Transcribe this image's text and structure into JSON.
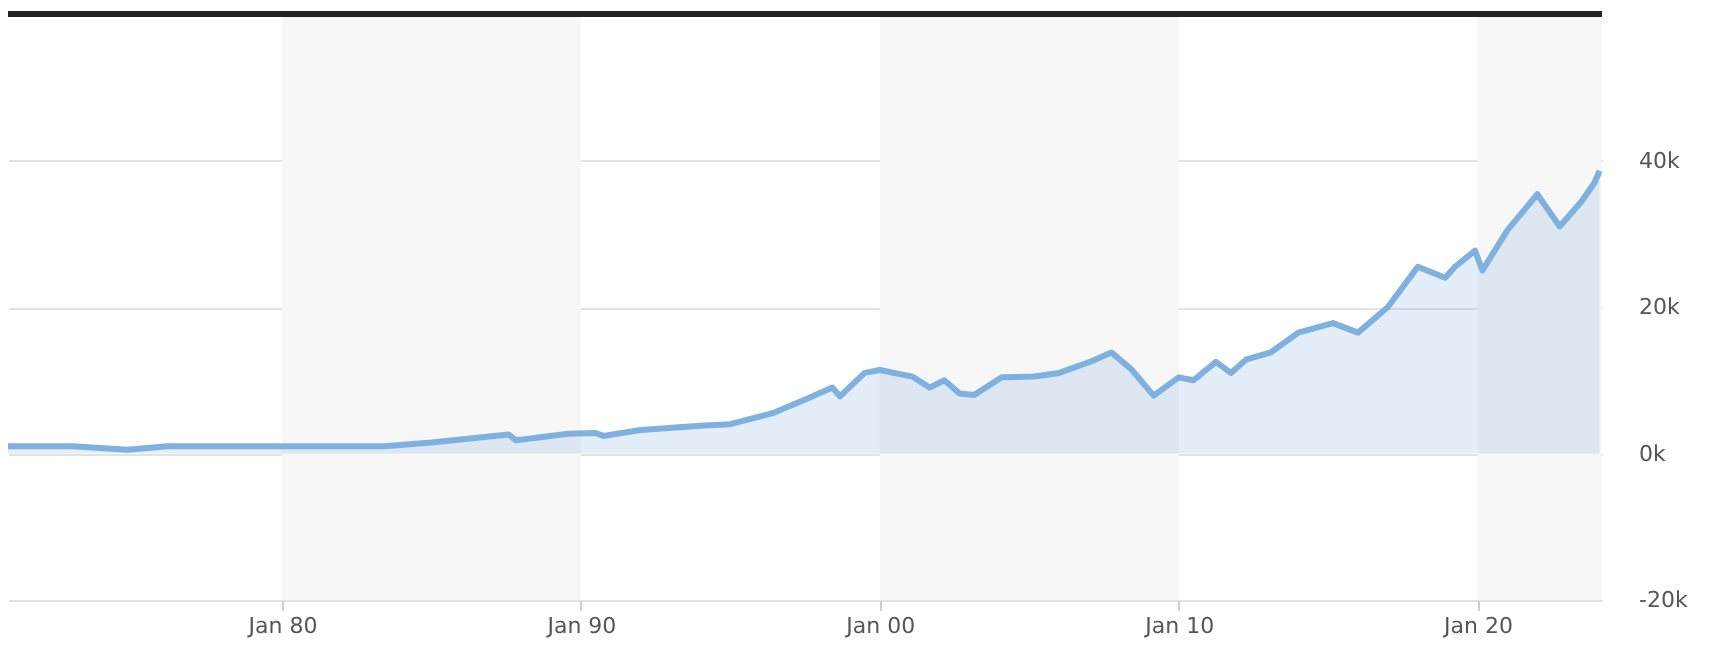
{
  "chart_data": {
    "type": "area",
    "series": [
      {
        "color": "#7eb0e0",
        "x": [
          "1970-11",
          "1971-06",
          "1973-01",
          "1974-11",
          "1976-03",
          "1978-03",
          "1980-01",
          "1981-04",
          "1982-08",
          "1983-06",
          "1985-01",
          "1987-08",
          "1987-11",
          "1989-08",
          "1990-07",
          "1990-10",
          "1992-01",
          "1994-01",
          "1995-01",
          "1996-06",
          "1997-08",
          "1998-06",
          "1998-09",
          "1999-07",
          "2000-01",
          "2001-02",
          "2001-09",
          "2002-03",
          "2002-09",
          "2003-03",
          "2004-02",
          "2005-03",
          "2006-01",
          "2007-02",
          "2007-10",
          "2008-06",
          "2009-03",
          "2010-01",
          "2010-07",
          "2011-04",
          "2011-10",
          "2012-04",
          "2013-02",
          "2014-01",
          "2015-03",
          "2016-01",
          "2017-01",
          "2018-01",
          "2018-12",
          "2019-04",
          "2019-12",
          "2020-03",
          "2021-01",
          "2022-01",
          "2022-10",
          "2023-07",
          "2023-12",
          "2024-02"
        ],
        "values": [
          1000,
          1000,
          1000,
          500,
          1000,
          1000,
          1000,
          1000,
          1000,
          1000,
          1500,
          2600,
          1800,
          2700,
          2800,
          2400,
          3200,
          3800,
          4000,
          5500,
          7500,
          9000,
          7800,
          11000,
          11400,
          10500,
          9000,
          10000,
          8200,
          8000,
          10400,
          10500,
          11000,
          12600,
          13800,
          11500,
          7900,
          10400,
          10000,
          12500,
          11000,
          12800,
          13800,
          16500,
          17800,
          16500,
          20000,
          25500,
          24000,
          25500,
          27700,
          25000,
          30500,
          35400,
          31000,
          34500,
          37000,
          38600
        ]
      }
    ],
    "xlim": [
      "1970-11",
      "2024-03"
    ],
    "xticks": [
      {
        "value": "1980-01",
        "label": "Jan 80"
      },
      {
        "value": "1990-01",
        "label": "Jan 90"
      },
      {
        "value": "2000-01",
        "label": "Jan 00"
      },
      {
        "value": "2010-01",
        "label": "Jan 10"
      },
      {
        "value": "2020-01",
        "label": "Jan 20"
      }
    ],
    "ylim": [
      -20000,
      60000
    ],
    "yticks": [
      {
        "value": -20000,
        "label": "-20k"
      },
      {
        "value": 0,
        "label": "0k"
      },
      {
        "value": 20000,
        "label": "20k"
      },
      {
        "value": 40000,
        "label": "40k"
      }
    ],
    "grid": "y",
    "bands": [
      {
        "axis": "x",
        "from": "1980-01",
        "to": "1990-01",
        "color": "#f7f7f7"
      },
      {
        "axis": "x",
        "from": "2000-01",
        "to": "2010-01",
        "color": "#f7f7f7"
      },
      {
        "axis": "x",
        "from": "2020-01",
        "to": "2024-03",
        "color": "#f7f7f7"
      }
    ]
  }
}
